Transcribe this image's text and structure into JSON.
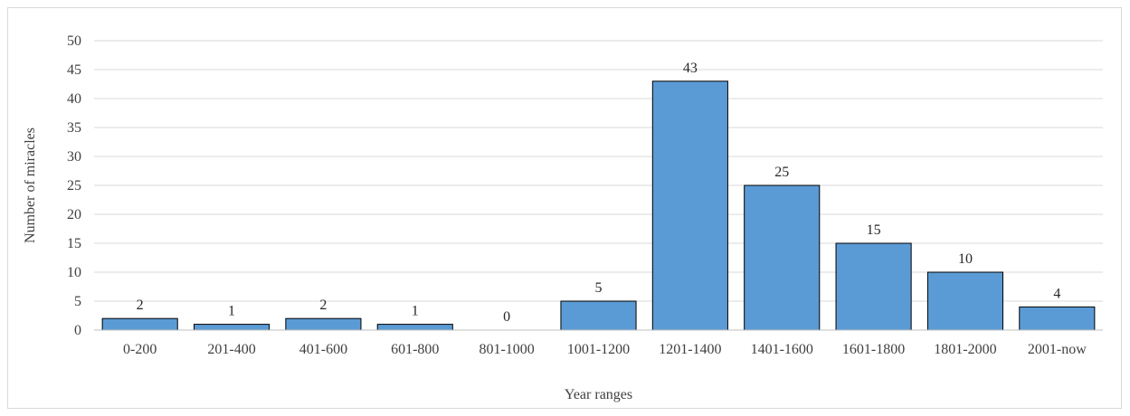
{
  "chart_data": {
    "type": "bar",
    "title": "",
    "xlabel": "Year ranges",
    "ylabel": "Number of miracles",
    "categories": [
      "0-200",
      "201-400",
      "401-600",
      "601-800",
      "801-1000",
      "1001-1200",
      "1201-1400",
      "1401-1600",
      "1601-1800",
      "1801-2000",
      "2001-now"
    ],
    "values": [
      2,
      1,
      2,
      1,
      0,
      5,
      43,
      25,
      15,
      10,
      4
    ],
    "ylim": [
      0,
      50
    ],
    "yticks": [
      0,
      5,
      10,
      15,
      20,
      25,
      30,
      35,
      40,
      45,
      50
    ],
    "grid": true,
    "legend": "none",
    "data_labels": true,
    "bar_color": "#5b9bd5",
    "bar_edge_color": "#000000",
    "grid_color": "#d9d9d9"
  }
}
